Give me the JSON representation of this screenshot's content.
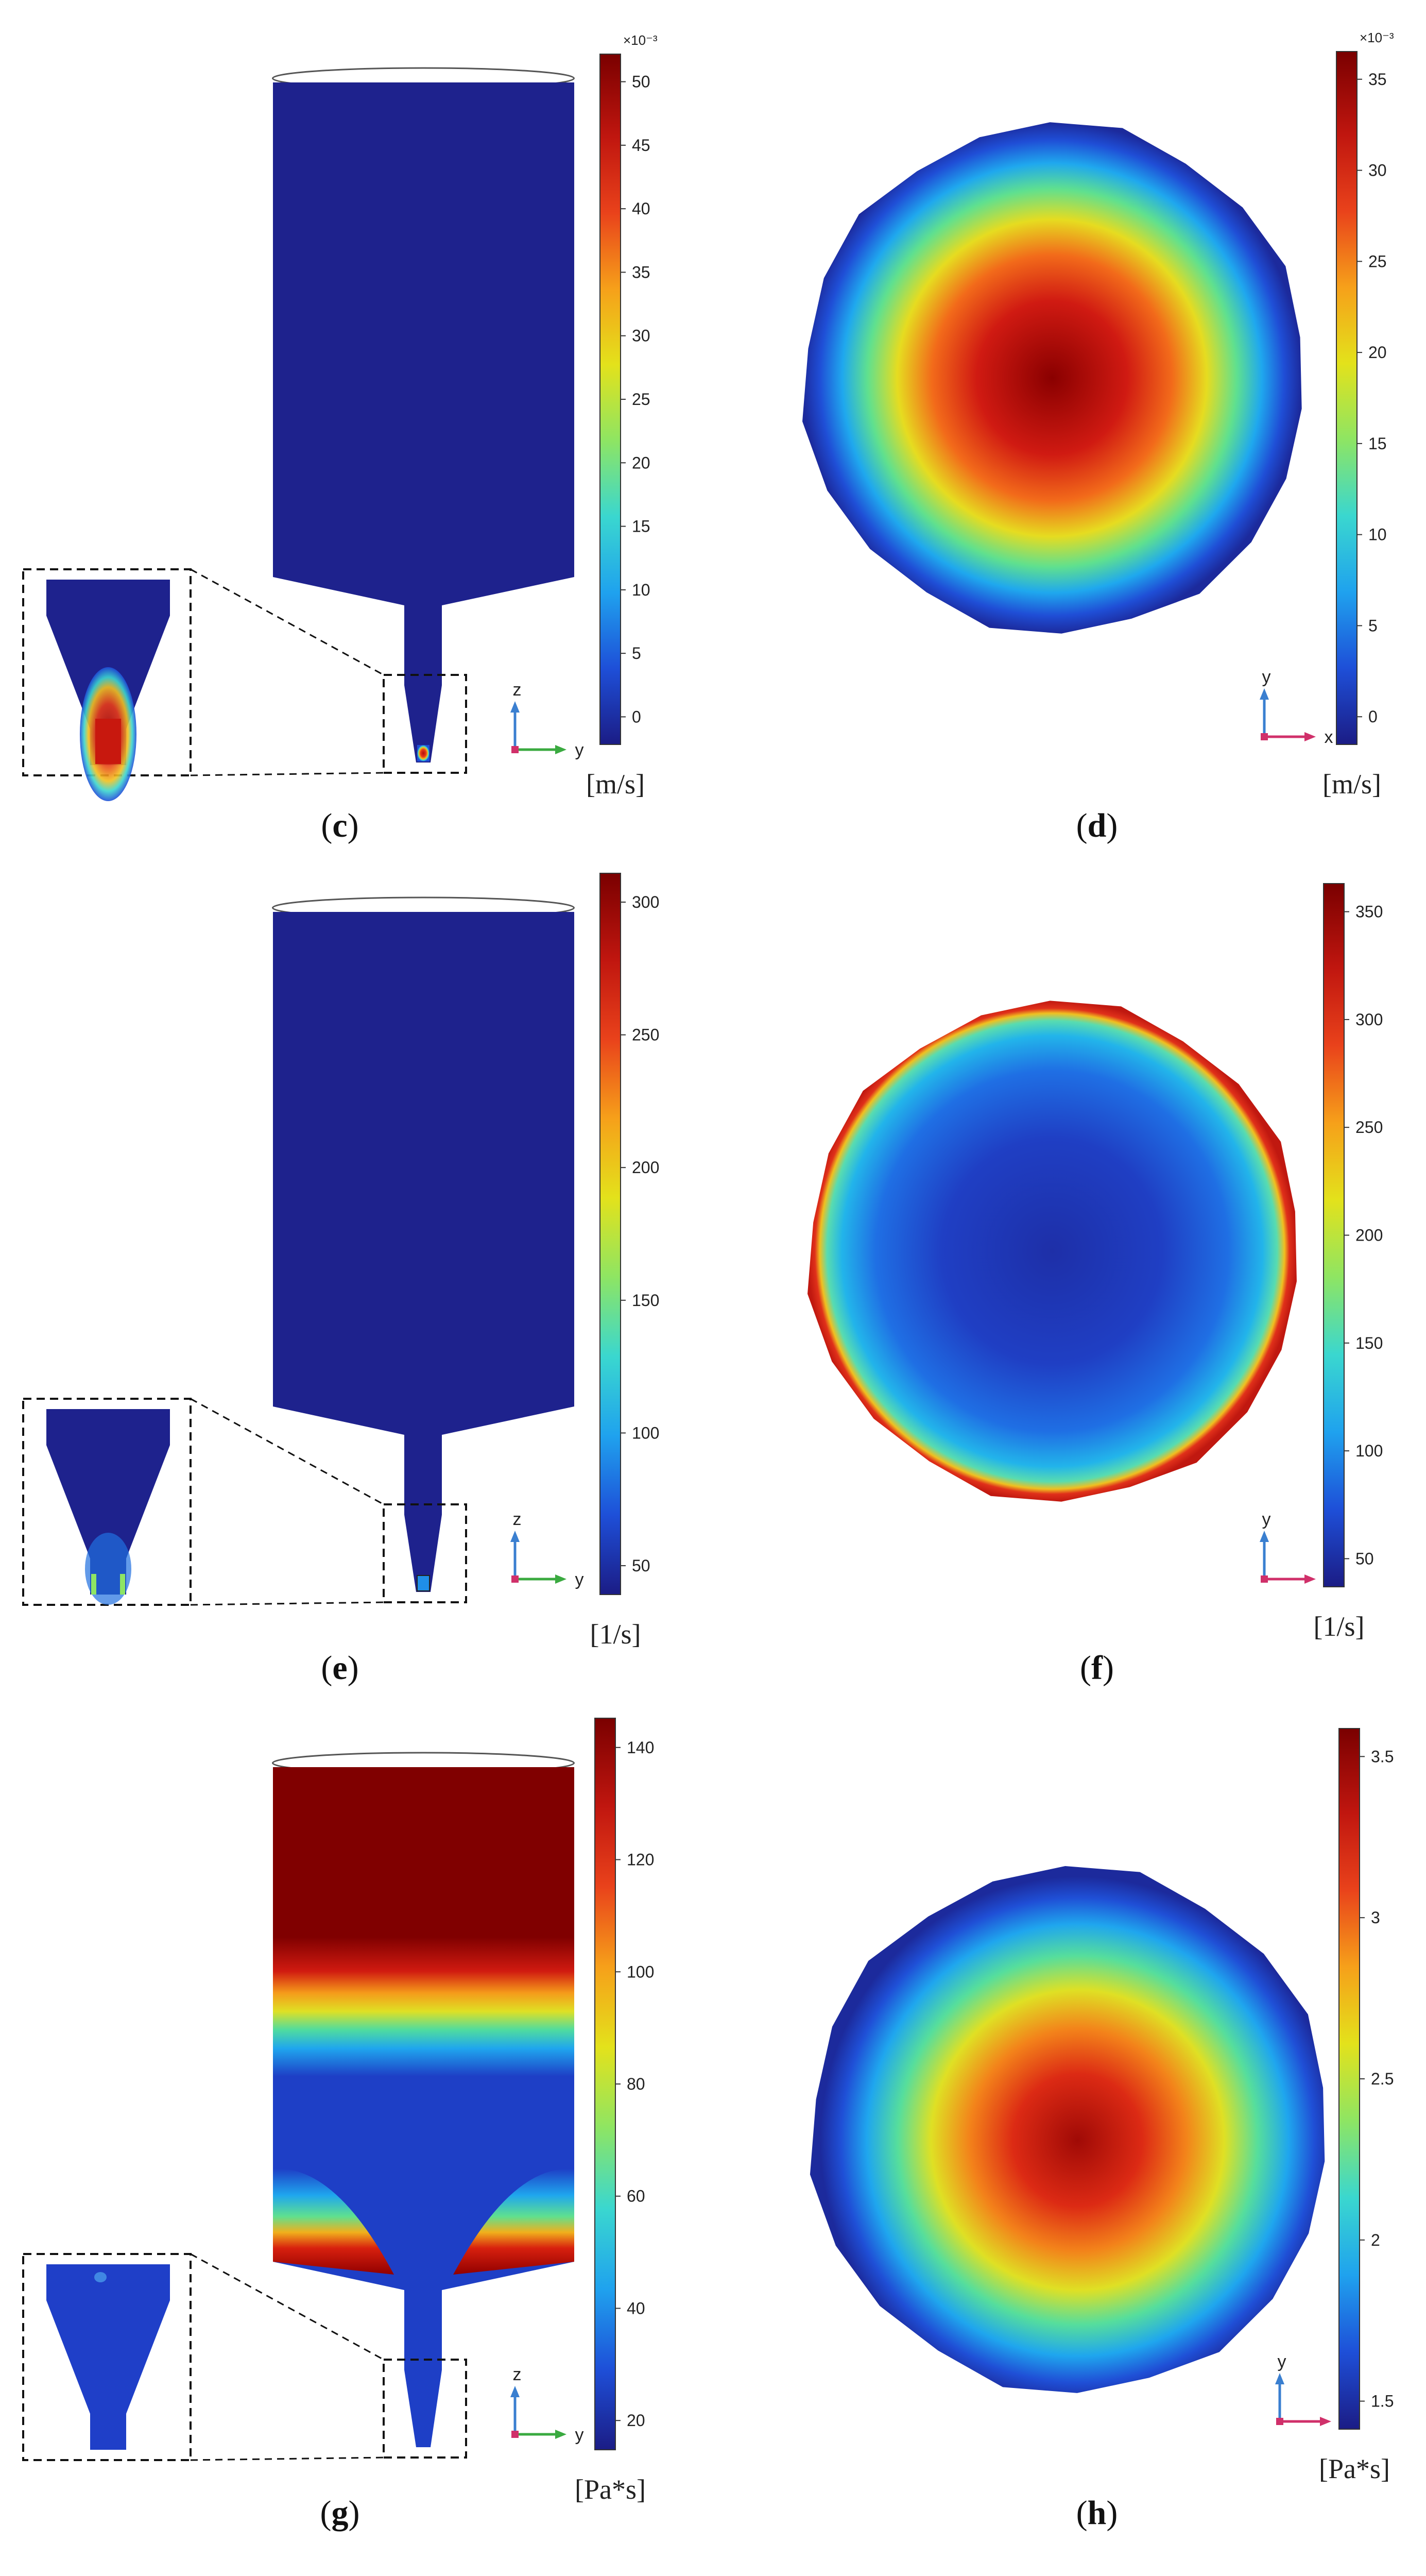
{
  "panels": [
    {
      "id": "c",
      "type": "silo",
      "caption_letter": "c",
      "unit": "[m/s]",
      "scale_exponent": "×10⁻³",
      "ticks": [
        "0",
        "5",
        "10",
        "15",
        "20",
        "25",
        "30",
        "35",
        "40",
        "45",
        "50"
      ],
      "axis_h": "y",
      "axis_v": "z",
      "field": "velocity magnitude"
    },
    {
      "id": "d",
      "type": "circle",
      "caption_letter": "d",
      "unit": "[m/s]",
      "scale_exponent": "×10⁻³",
      "ticks": [
        "0",
        "5",
        "10",
        "15",
        "20",
        "25",
        "30",
        "35"
      ],
      "axis_h": "x",
      "axis_v": "y",
      "field": "center-high"
    },
    {
      "id": "e",
      "type": "silo",
      "caption_letter": "e",
      "unit": "[1/s]",
      "scale_exponent": "",
      "ticks": [
        "50",
        "100",
        "150",
        "200",
        "250",
        "300"
      ],
      "axis_h": "y",
      "axis_v": "z",
      "field": "shear rate"
    },
    {
      "id": "f",
      "type": "circle",
      "caption_letter": "f",
      "unit": "[1/s]",
      "scale_exponent": "",
      "ticks": [
        "50",
        "100",
        "150",
        "200",
        "250",
        "300",
        "350"
      ],
      "axis_h": "x",
      "axis_v": "y",
      "field": "edge-high"
    },
    {
      "id": "g",
      "type": "silo",
      "caption_letter": "g",
      "unit": "[Pa*s]",
      "scale_exponent": "",
      "ticks": [
        "20",
        "40",
        "60",
        "80",
        "100",
        "120",
        "140"
      ],
      "axis_h": "y",
      "axis_v": "z",
      "field": "viscosity"
    },
    {
      "id": "h",
      "type": "circle",
      "caption_letter": "h",
      "unit": "[Pa*s]",
      "scale_exponent": "",
      "ticks": [
        "1.5",
        "2",
        "2.5",
        "3",
        "3.5"
      ],
      "axis_h": "x",
      "axis_v": "y",
      "field": "center-high"
    }
  ],
  "colormap": [
    "#1b1c85",
    "#1e4fd8",
    "#1fa2ee",
    "#3ad7cf",
    "#8ee563",
    "#e3e21b",
    "#f6a01a",
    "#e9421b",
    "#c0160f",
    "#7a0000"
  ]
}
